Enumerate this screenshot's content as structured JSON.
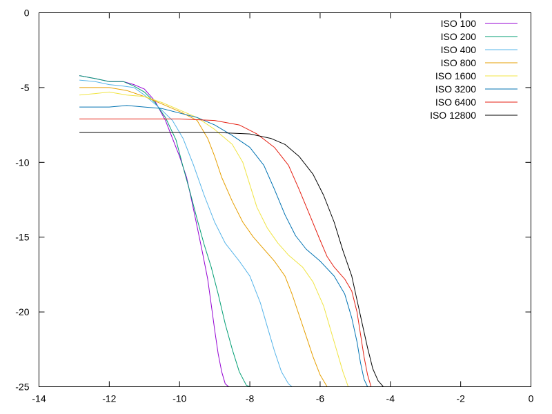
{
  "chart_data": {
    "type": "line",
    "title": "",
    "xlabel": "",
    "ylabel": "",
    "xlim": [
      -14,
      0
    ],
    "ylim": [
      -25,
      0
    ],
    "grid": false,
    "legend_position": "top-right",
    "x_ticks": [
      -14,
      -12,
      -10,
      -8,
      -6,
      -4,
      -2,
      0
    ],
    "y_ticks": [
      0,
      -5,
      -10,
      -15,
      -20,
      -25
    ],
    "x_tick_labels": [
      "-14",
      "-12",
      "-10",
      "-8",
      "-6",
      "-4",
      "-2",
      "0"
    ],
    "y_tick_labels": [
      "0",
      "-5",
      "-10",
      "-15",
      "-20",
      "-25"
    ],
    "series": [
      {
        "name": "ISO 100",
        "color": "#9400d3",
        "points": [
          [
            -12.85,
            -4.2
          ],
          [
            -12.4,
            -4.4
          ],
          [
            -12.0,
            -4.6
          ],
          [
            -11.6,
            -4.6
          ],
          [
            -11.3,
            -4.8
          ],
          [
            -11.0,
            -5.1
          ],
          [
            -10.7,
            -5.9
          ],
          [
            -10.4,
            -7.2
          ],
          [
            -10.2,
            -8.4
          ],
          [
            -10.0,
            -9.6
          ],
          [
            -9.8,
            -11.0
          ],
          [
            -9.65,
            -12.6
          ],
          [
            -9.5,
            -14.3
          ],
          [
            -9.35,
            -16.0
          ],
          [
            -9.2,
            -17.8
          ],
          [
            -9.1,
            -19.5
          ],
          [
            -9.0,
            -21.2
          ],
          [
            -8.9,
            -22.8
          ],
          [
            -8.8,
            -24.0
          ],
          [
            -8.7,
            -24.8
          ],
          [
            -8.6,
            -25.0
          ]
        ]
      },
      {
        "name": "ISO 200",
        "color": "#009e73",
        "points": [
          [
            -12.85,
            -4.2
          ],
          [
            -12.4,
            -4.4
          ],
          [
            -12.0,
            -4.6
          ],
          [
            -11.6,
            -4.6
          ],
          [
            -11.3,
            -4.9
          ],
          [
            -11.0,
            -5.3
          ],
          [
            -10.7,
            -6.0
          ],
          [
            -10.4,
            -7.0
          ],
          [
            -10.1,
            -8.5
          ],
          [
            -9.9,
            -10.3
          ],
          [
            -9.7,
            -12.0
          ],
          [
            -9.5,
            -13.8
          ],
          [
            -9.3,
            -15.5
          ],
          [
            -9.1,
            -17.0
          ],
          [
            -8.9,
            -18.8
          ],
          [
            -8.7,
            -20.8
          ],
          [
            -8.5,
            -22.5
          ],
          [
            -8.3,
            -24.0
          ],
          [
            -8.1,
            -24.9
          ],
          [
            -8.0,
            -25.0
          ]
        ]
      },
      {
        "name": "ISO 400",
        "color": "#56b4e9",
        "points": [
          [
            -12.85,
            -4.5
          ],
          [
            -12.4,
            -4.6
          ],
          [
            -12.0,
            -4.8
          ],
          [
            -11.6,
            -4.9
          ],
          [
            -11.3,
            -5.0
          ],
          [
            -11.0,
            -5.5
          ],
          [
            -10.6,
            -6.3
          ],
          [
            -10.2,
            -7.2
          ],
          [
            -9.9,
            -8.4
          ],
          [
            -9.6,
            -10.2
          ],
          [
            -9.3,
            -12.2
          ],
          [
            -9.0,
            -14.0
          ],
          [
            -8.7,
            -15.4
          ],
          [
            -8.3,
            -16.6
          ],
          [
            -8.0,
            -17.6
          ],
          [
            -7.7,
            -19.4
          ],
          [
            -7.5,
            -21.0
          ],
          [
            -7.3,
            -22.6
          ],
          [
            -7.1,
            -24.0
          ],
          [
            -6.9,
            -24.8
          ],
          [
            -6.8,
            -25.0
          ]
        ]
      },
      {
        "name": "ISO 800",
        "color": "#e69f00",
        "points": [
          [
            -12.85,
            -5.0
          ],
          [
            -12.4,
            -5.0
          ],
          [
            -12.0,
            -5.0
          ],
          [
            -11.5,
            -5.2
          ],
          [
            -11.0,
            -5.6
          ],
          [
            -10.5,
            -6.1
          ],
          [
            -10.0,
            -6.6
          ],
          [
            -9.5,
            -7.2
          ],
          [
            -9.2,
            -8.4
          ],
          [
            -9.0,
            -9.6
          ],
          [
            -8.8,
            -11.0
          ],
          [
            -8.5,
            -12.6
          ],
          [
            -8.2,
            -14.0
          ],
          [
            -7.9,
            -15.0
          ],
          [
            -7.6,
            -15.8
          ],
          [
            -7.3,
            -16.6
          ],
          [
            -7.0,
            -17.6
          ],
          [
            -6.8,
            -18.8
          ],
          [
            -6.6,
            -20.2
          ],
          [
            -6.4,
            -21.6
          ],
          [
            -6.2,
            -23.0
          ],
          [
            -6.0,
            -24.2
          ],
          [
            -5.8,
            -25.0
          ]
        ]
      },
      {
        "name": "ISO 1600",
        "color": "#f0e442",
        "points": [
          [
            -12.85,
            -5.5
          ],
          [
            -12.4,
            -5.4
          ],
          [
            -12.0,
            -5.3
          ],
          [
            -11.5,
            -5.5
          ],
          [
            -11.0,
            -5.6
          ],
          [
            -10.5,
            -6.0
          ],
          [
            -10.0,
            -6.5
          ],
          [
            -9.5,
            -7.0
          ],
          [
            -9.0,
            -7.8
          ],
          [
            -8.5,
            -8.8
          ],
          [
            -8.2,
            -10.0
          ],
          [
            -8.0,
            -11.5
          ],
          [
            -7.8,
            -13.0
          ],
          [
            -7.5,
            -14.4
          ],
          [
            -7.2,
            -15.4
          ],
          [
            -6.9,
            -16.2
          ],
          [
            -6.5,
            -17.0
          ],
          [
            -6.2,
            -18.0
          ],
          [
            -5.9,
            -19.6
          ],
          [
            -5.7,
            -21.2
          ],
          [
            -5.5,
            -22.8
          ],
          [
            -5.35,
            -24.0
          ],
          [
            -5.2,
            -25.0
          ]
        ]
      },
      {
        "name": "ISO 3200",
        "color": "#0072b2",
        "points": [
          [
            -12.85,
            -6.3
          ],
          [
            -12.0,
            -6.3
          ],
          [
            -11.5,
            -6.2
          ],
          [
            -11.0,
            -6.3
          ],
          [
            -10.5,
            -6.4
          ],
          [
            -10.0,
            -6.7
          ],
          [
            -9.5,
            -7.0
          ],
          [
            -9.0,
            -7.5
          ],
          [
            -8.5,
            -8.2
          ],
          [
            -8.0,
            -9.0
          ],
          [
            -7.6,
            -10.2
          ],
          [
            -7.3,
            -11.8
          ],
          [
            -7.0,
            -13.5
          ],
          [
            -6.7,
            -14.9
          ],
          [
            -6.4,
            -15.8
          ],
          [
            -6.0,
            -16.6
          ],
          [
            -5.6,
            -17.6
          ],
          [
            -5.3,
            -18.8
          ],
          [
            -5.1,
            -20.4
          ],
          [
            -4.95,
            -22.0
          ],
          [
            -4.85,
            -23.4
          ],
          [
            -4.75,
            -24.5
          ],
          [
            -4.65,
            -25.0
          ]
        ]
      },
      {
        "name": "ISO 6400",
        "color": "#e51e10",
        "points": [
          [
            -12.85,
            -7.1
          ],
          [
            -12.0,
            -7.1
          ],
          [
            -11.0,
            -7.1
          ],
          [
            -10.0,
            -7.1
          ],
          [
            -9.0,
            -7.2
          ],
          [
            -8.3,
            -7.5
          ],
          [
            -7.8,
            -8.1
          ],
          [
            -7.3,
            -9.0
          ],
          [
            -6.9,
            -10.2
          ],
          [
            -6.6,
            -11.8
          ],
          [
            -6.3,
            -13.5
          ],
          [
            -6.0,
            -15.2
          ],
          [
            -5.8,
            -16.3
          ],
          [
            -5.6,
            -17.0
          ],
          [
            -5.3,
            -17.8
          ],
          [
            -5.1,
            -18.6
          ],
          [
            -4.95,
            -20.0
          ],
          [
            -4.85,
            -21.5
          ],
          [
            -4.75,
            -23.0
          ],
          [
            -4.65,
            -24.2
          ],
          [
            -4.55,
            -25.0
          ]
        ]
      },
      {
        "name": "ISO 12800",
        "color": "#000000",
        "points": [
          [
            -12.85,
            -8.0
          ],
          [
            -12.0,
            -8.0
          ],
          [
            -10.0,
            -8.0
          ],
          [
            -9.0,
            -8.0
          ],
          [
            -8.0,
            -8.1
          ],
          [
            -7.4,
            -8.4
          ],
          [
            -7.0,
            -8.8
          ],
          [
            -6.6,
            -9.6
          ],
          [
            -6.2,
            -10.8
          ],
          [
            -5.9,
            -12.2
          ],
          [
            -5.6,
            -14.0
          ],
          [
            -5.35,
            -15.9
          ],
          [
            -5.1,
            -17.6
          ],
          [
            -4.95,
            -19.2
          ],
          [
            -4.8,
            -20.8
          ],
          [
            -4.65,
            -22.4
          ],
          [
            -4.5,
            -23.8
          ],
          [
            -4.35,
            -24.6
          ],
          [
            -4.2,
            -25.0
          ]
        ]
      }
    ]
  }
}
